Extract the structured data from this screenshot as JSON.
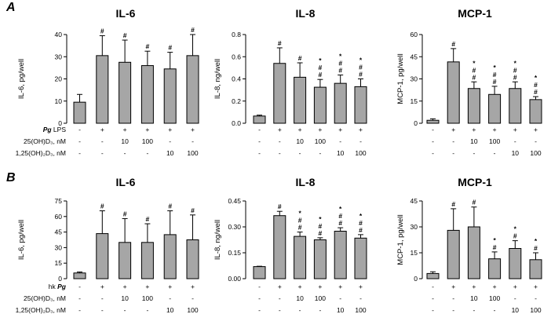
{
  "chart_data": [
    {
      "type": "bar",
      "panel": "A",
      "title": "IL-6",
      "ylabel": "IL-6, pg/well",
      "ylim": [
        0,
        40
      ],
      "yticks": [
        "0",
        "10",
        "20",
        "30",
        "40"
      ],
      "ytick_values": [
        0,
        10,
        20,
        30,
        40
      ],
      "categories": [
        "1",
        "2",
        "3",
        "4",
        "5",
        "6"
      ],
      "values": [
        9.5,
        30.5,
        27.5,
        26,
        24.5,
        30.5
      ],
      "errors": [
        3.5,
        9,
        10,
        6.5,
        7.5,
        9.5
      ],
      "annotations": [
        [],
        [
          "#"
        ],
        [
          "#"
        ],
        [
          "#"
        ],
        [
          "#"
        ],
        [
          "#"
        ]
      ]
    },
    {
      "type": "bar",
      "panel": "A",
      "title": "IL-8",
      "ylabel": "IL-8, ng/well",
      "ylim": [
        0,
        0.8
      ],
      "yticks": [
        "0.0",
        "0.2",
        "0.4",
        "0.6",
        "0.8"
      ],
      "ytick_values": [
        0,
        0.2,
        0.4,
        0.6,
        0.8
      ],
      "categories": [
        "1",
        "2",
        "3",
        "4",
        "5",
        "6"
      ],
      "values": [
        0.065,
        0.54,
        0.415,
        0.325,
        0.36,
        0.33
      ],
      "errors": [
        0.008,
        0.14,
        0.13,
        0.07,
        0.075,
        0.07
      ],
      "annotations": [
        [],
        [
          "#"
        ],
        [
          "#"
        ],
        [
          "*",
          "#",
          "#"
        ],
        [
          "*",
          "#",
          "#"
        ],
        [
          "*",
          "#",
          "#"
        ]
      ]
    },
    {
      "type": "bar",
      "panel": "A",
      "title": "MCP-1",
      "ylabel": "MCP-1, pg/well",
      "ylim": [
        0,
        60
      ],
      "yticks": [
        "0",
        "15",
        "30",
        "45",
        "60"
      ],
      "ytick_values": [
        0,
        15,
        30,
        45,
        60
      ],
      "categories": [
        "1",
        "2",
        "3",
        "4",
        "5",
        "6"
      ],
      "values": [
        2,
        41.5,
        23.5,
        19.5,
        23.5,
        16
      ],
      "errors": [
        1,
        9,
        4.5,
        5.5,
        4.5,
        2
      ],
      "annotations": [
        [],
        [
          "#"
        ],
        [
          "*",
          "#",
          "#"
        ],
        [
          "*",
          "#",
          "#"
        ],
        [
          "*",
          "#",
          "#"
        ],
        [
          "*",
          "#",
          "#"
        ]
      ]
    },
    {
      "type": "bar",
      "panel": "B",
      "title": "IL-6",
      "ylabel": "IL-6, pg/well",
      "ylim": [
        0,
        75
      ],
      "yticks": [
        "0",
        "15",
        "30",
        "45",
        "60",
        "75"
      ],
      "ytick_values": [
        0,
        15,
        30,
        45,
        60,
        75
      ],
      "categories": [
        "1",
        "2",
        "3",
        "4",
        "5",
        "6"
      ],
      "values": [
        5.5,
        43.5,
        35,
        35,
        42.5,
        37.5
      ],
      "errors": [
        1,
        22,
        23,
        18,
        23,
        24
      ],
      "annotations": [
        [],
        [
          "#"
        ],
        [
          "#"
        ],
        [
          "#"
        ],
        [
          "#"
        ],
        [
          "#"
        ]
      ]
    },
    {
      "type": "bar",
      "panel": "B",
      "title": "IL-8",
      "ylabel": "IL-8, ng/well",
      "ylim": [
        0,
        0.45
      ],
      "yticks": [
        "0.00",
        "0.15",
        "0.30",
        "0.45"
      ],
      "ytick_values": [
        0,
        0.15,
        0.3,
        0.45
      ],
      "categories": [
        "1",
        "2",
        "3",
        "4",
        "5",
        "6"
      ],
      "values": [
        0.07,
        0.365,
        0.245,
        0.225,
        0.275,
        0.235
      ],
      "errors": [
        0.002,
        0.025,
        0.025,
        0.012,
        0.02,
        0.02
      ],
      "annotations": [
        [],
        [
          "#"
        ],
        [
          "*",
          "#",
          "#"
        ],
        [
          "*",
          "#",
          "#"
        ],
        [
          "*",
          "#",
          "#"
        ],
        [
          "*",
          "#",
          "#"
        ]
      ]
    },
    {
      "type": "bar",
      "panel": "B",
      "title": "MCP-1",
      "ylabel": "MCP-1, pg/well",
      "ylim": [
        0,
        45
      ],
      "yticks": [
        "0",
        "15",
        "30",
        "45"
      ],
      "ytick_values": [
        0,
        15,
        30,
        45
      ],
      "categories": [
        "1",
        "2",
        "3",
        "4",
        "5",
        "6"
      ],
      "values": [
        3,
        28,
        30,
        11.5,
        17.5,
        11
      ],
      "errors": [
        1,
        12.5,
        11.5,
        4,
        4.5,
        4
      ],
      "annotations": [
        [],
        [
          "#"
        ],
        [
          "#"
        ],
        [
          "*",
          "#"
        ],
        [
          "*",
          "#"
        ],
        [
          "*",
          "#"
        ]
      ]
    }
  ],
  "rows": [
    {
      "letter": "A",
      "conditions": [
        {
          "italic_prefix": "Pg",
          "rest": " LPS",
          "values": [
            "-",
            "+",
            "+",
            "+",
            "+",
            "+"
          ]
        },
        {
          "label": "25(OH)D₃, nM",
          "values": [
            "-",
            "-",
            "10",
            "100",
            "-",
            "-"
          ]
        },
        {
          "label": "1,25(OH)₂D₃, nM",
          "values": [
            "-",
            "-",
            "-",
            "-",
            "10",
            "100"
          ]
        }
      ]
    },
    {
      "letter": "B",
      "conditions": [
        {
          "prefix": "hk ",
          "italic_suffix": "Pg",
          "values": [
            "-",
            "+",
            "+",
            "+",
            "+",
            "+"
          ]
        },
        {
          "label": "25(OH)D₃, nM",
          "values": [
            "-",
            "-",
            "10",
            "100",
            "-",
            "-"
          ]
        },
        {
          "label": "1,25(OH)₂D₃, nM",
          "values": [
            "-",
            "-",
            "-",
            "-",
            "10",
            "100"
          ]
        }
      ]
    }
  ],
  "colors": {
    "bar": "#a6a6a6",
    "axis": "#000000",
    "text": "#000000"
  }
}
